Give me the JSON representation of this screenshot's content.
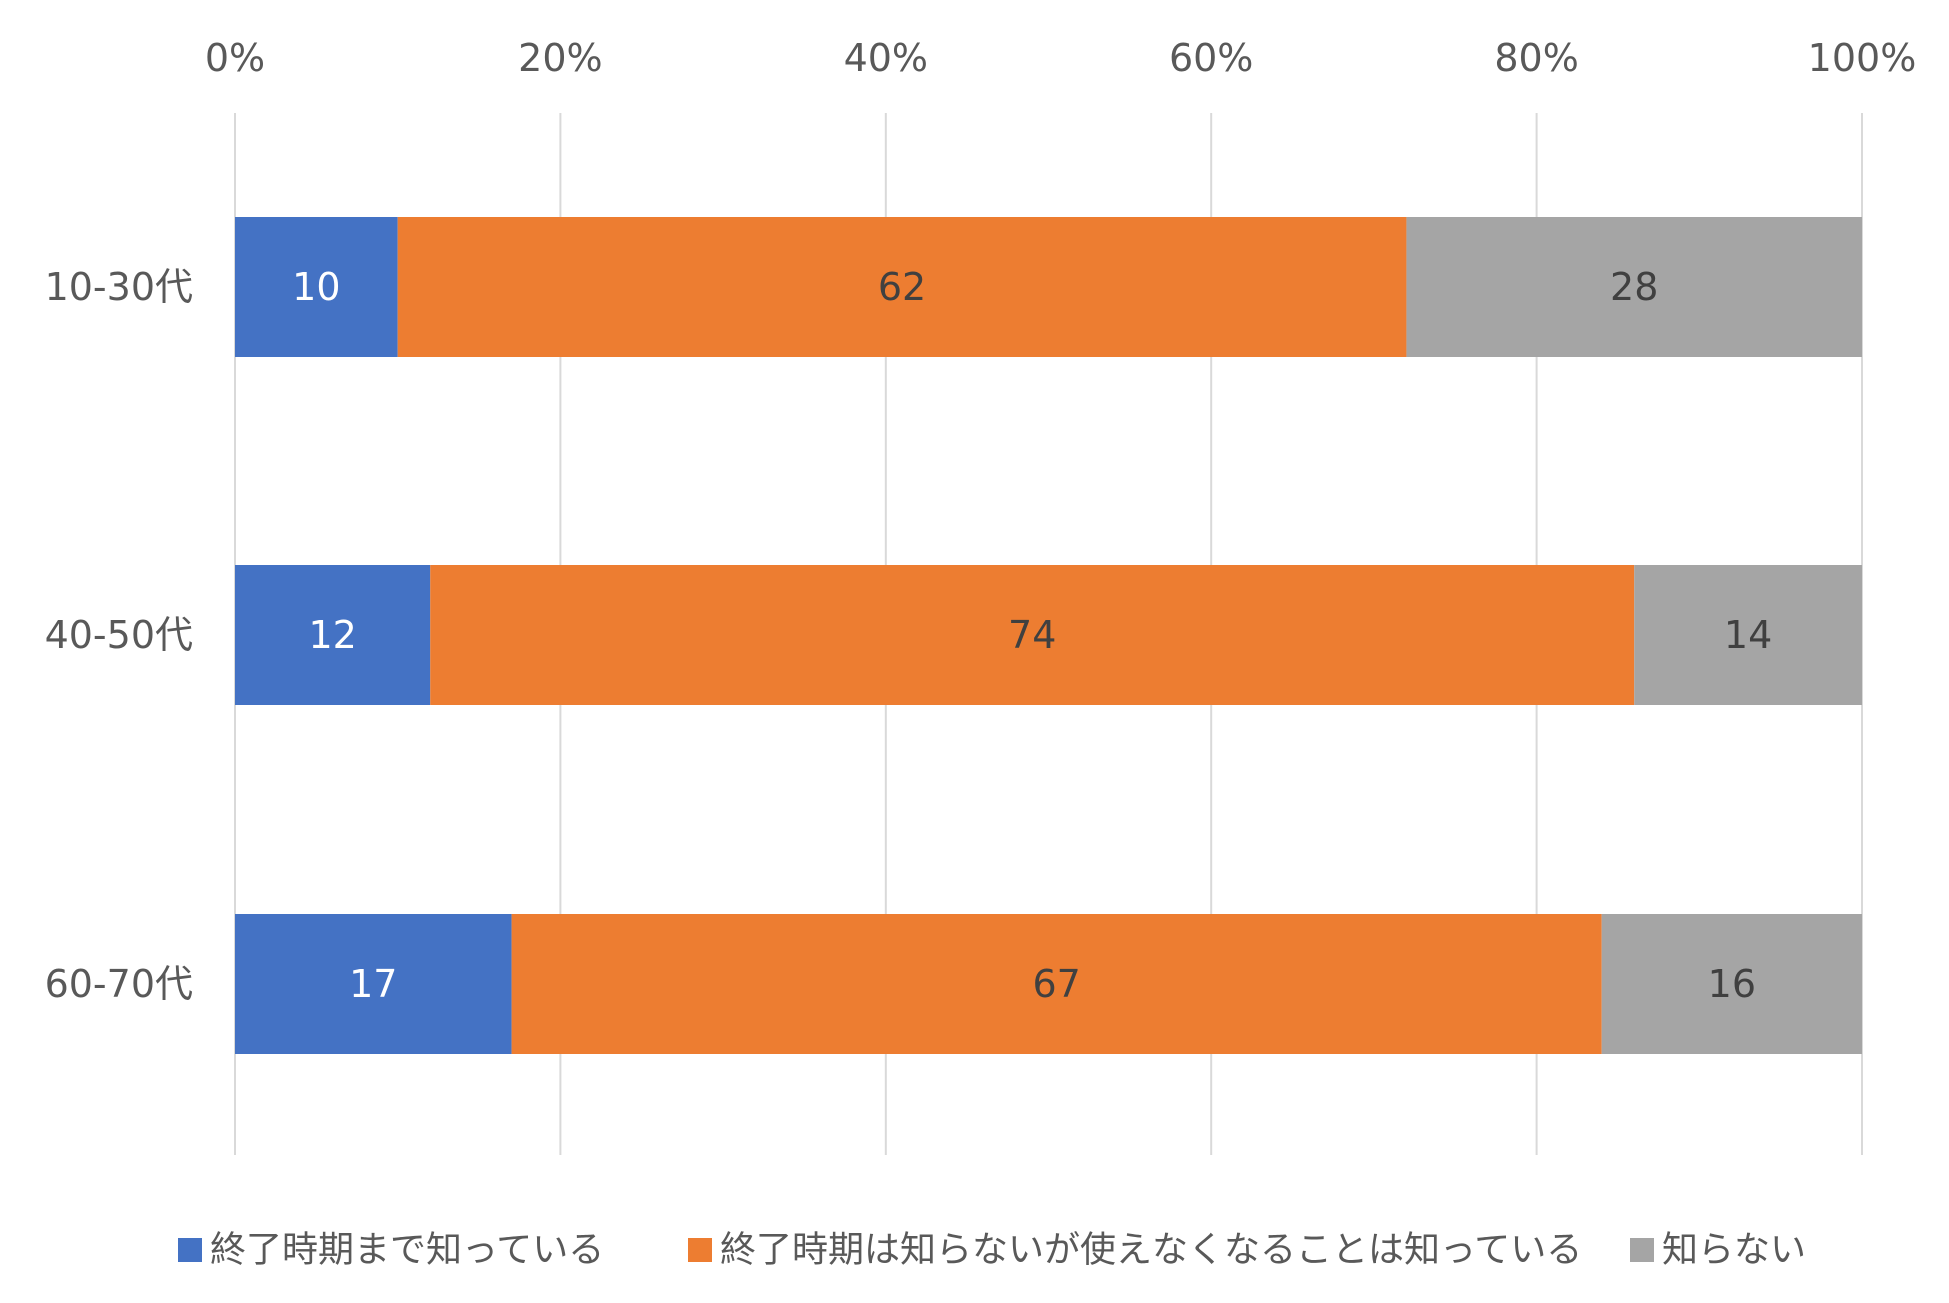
{
  "chart_data": {
    "type": "bar",
    "orientation": "horizontal",
    "stacked": true,
    "percent_stacked": true,
    "categories": [
      "10-30代",
      "40-50代",
      "60-70代"
    ],
    "series": [
      {
        "name": "終了時期まで知っている",
        "values": [
          10,
          12,
          17
        ],
        "color": "#4472C4",
        "label_color": "#FFFFFF"
      },
      {
        "name": "終了時期は知らないが使えなくなることは知っている",
        "values": [
          62,
          74,
          67
        ],
        "color": "#ED7D31",
        "label_color": "#404040"
      },
      {
        "name": "知らない",
        "values": [
          28,
          14,
          16
        ],
        "color": "#A5A5A5",
        "label_color": "#404040"
      }
    ],
    "x_ticks": [
      "0%",
      "20%",
      "40%",
      "60%",
      "80%",
      "100%"
    ],
    "xlim": [
      0,
      100
    ],
    "xaxis_position": "top",
    "grid": true,
    "legend_position": "bottom",
    "title": "",
    "xlabel": "",
    "ylabel": ""
  }
}
